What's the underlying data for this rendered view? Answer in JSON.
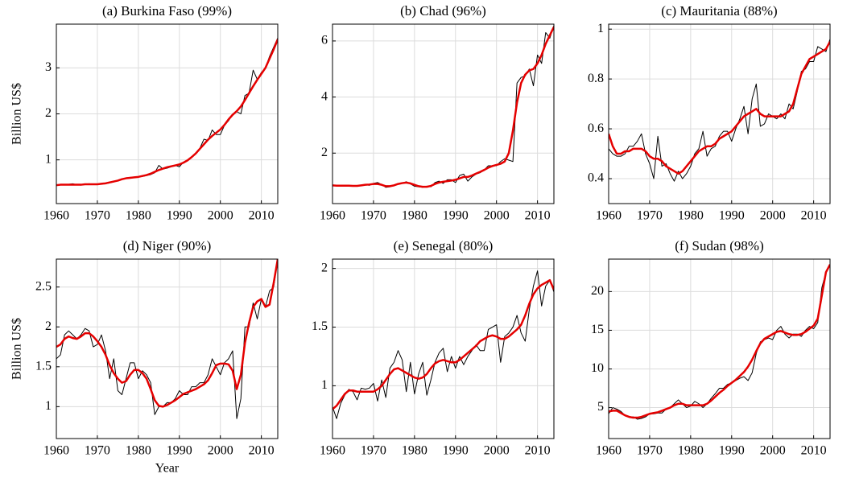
{
  "chart_data": [
    {
      "type": "line",
      "title": "(a) Burkina Faso (99%)",
      "ylabel": "Billion US$",
      "x": [
        1960,
        1961,
        1962,
        1963,
        1964,
        1965,
        1966,
        1967,
        1968,
        1969,
        1970,
        1971,
        1972,
        1973,
        1974,
        1975,
        1976,
        1977,
        1978,
        1979,
        1980,
        1981,
        1982,
        1983,
        1984,
        1985,
        1986,
        1987,
        1988,
        1989,
        1990,
        1991,
        1992,
        1993,
        1994,
        1995,
        1996,
        1997,
        1998,
        1999,
        2000,
        2001,
        2002,
        2003,
        2004,
        2005,
        2006,
        2007,
        2008,
        2009,
        2010,
        2011,
        2012,
        2013,
        2014
      ],
      "xlim": [
        1960,
        2014
      ],
      "xticks": [
        1960,
        1970,
        1980,
        1990,
        2000,
        2010
      ],
      "ylim": [
        0.05,
        3.95
      ],
      "yticks": [
        1,
        2,
        3
      ],
      "grid": true,
      "series": [
        {
          "color": "#000000",
          "values": [
            0.45,
            0.46,
            0.47,
            0.47,
            0.48,
            0.46,
            0.45,
            0.47,
            0.48,
            0.47,
            0.47,
            0.48,
            0.48,
            0.5,
            0.52,
            0.55,
            0.58,
            0.6,
            0.62,
            0.62,
            0.63,
            0.64,
            0.66,
            0.68,
            0.72,
            0.88,
            0.8,
            0.82,
            0.85,
            0.88,
            0.85,
            0.95,
            0.98,
            1.05,
            1.15,
            1.25,
            1.45,
            1.42,
            1.65,
            1.55,
            1.55,
            1.75,
            1.85,
            2.0,
            2.05,
            2.0,
            2.4,
            2.45,
            2.95,
            2.75,
            2.9,
            3.0,
            3.25,
            3.45,
            3.65
          ]
        },
        {
          "color": "#e50000",
          "values": [
            0.45,
            0.46,
            0.46,
            0.46,
            0.46,
            0.46,
            0.46,
            0.47,
            0.47,
            0.47,
            0.47,
            0.48,
            0.49,
            0.51,
            0.53,
            0.55,
            0.58,
            0.6,
            0.61,
            0.62,
            0.63,
            0.65,
            0.67,
            0.7,
            0.74,
            0.78,
            0.81,
            0.84,
            0.86,
            0.88,
            0.9,
            0.94,
            0.99,
            1.06,
            1.14,
            1.24,
            1.34,
            1.44,
            1.52,
            1.59,
            1.66,
            1.76,
            1.88,
            1.98,
            2.06,
            2.16,
            2.3,
            2.45,
            2.6,
            2.74,
            2.87,
            3.0,
            3.2,
            3.4,
            3.62
          ]
        }
      ]
    },
    {
      "type": "line",
      "title": "(b) Chad (96%)",
      "x": [
        1960,
        1961,
        1962,
        1963,
        1964,
        1965,
        1966,
        1967,
        1968,
        1969,
        1970,
        1971,
        1972,
        1973,
        1974,
        1975,
        1976,
        1977,
        1978,
        1979,
        1980,
        1981,
        1982,
        1983,
        1984,
        1985,
        1986,
        1987,
        1988,
        1989,
        1990,
        1991,
        1992,
        1993,
        1994,
        1995,
        1996,
        1997,
        1998,
        1999,
        2000,
        2001,
        2002,
        2003,
        2004,
        2005,
        2006,
        2007,
        2008,
        2009,
        2010,
        2011,
        2012,
        2013,
        2014
      ],
      "xlim": [
        1960,
        2014
      ],
      "xticks": [
        1960,
        1970,
        1980,
        1990,
        2000,
        2010
      ],
      "ylim": [
        0.2,
        6.6
      ],
      "yticks": [
        2,
        4,
        6
      ],
      "grid": true,
      "series": [
        {
          "color": "#000000",
          "values": [
            0.85,
            0.85,
            0.83,
            0.85,
            0.85,
            0.82,
            0.82,
            0.85,
            0.88,
            0.85,
            0.92,
            0.95,
            0.88,
            0.78,
            0.8,
            0.85,
            0.9,
            0.92,
            0.98,
            0.9,
            0.82,
            0.8,
            0.78,
            0.82,
            0.8,
            0.95,
            1.0,
            0.92,
            1.05,
            1.05,
            0.95,
            1.2,
            1.25,
            1.0,
            1.15,
            1.25,
            1.3,
            1.4,
            1.55,
            1.55,
            1.55,
            1.7,
            1.8,
            1.75,
            1.7,
            4.5,
            4.7,
            4.75,
            5.0,
            4.4,
            5.5,
            5.2,
            6.3,
            6.1,
            6.55
          ]
        },
        {
          "color": "#e50000",
          "values": [
            0.85,
            0.84,
            0.84,
            0.84,
            0.84,
            0.83,
            0.83,
            0.85,
            0.87,
            0.88,
            0.9,
            0.9,
            0.87,
            0.82,
            0.82,
            0.85,
            0.9,
            0.93,
            0.95,
            0.92,
            0.87,
            0.82,
            0.8,
            0.8,
            0.83,
            0.9,
            0.95,
            0.98,
            1.0,
            1.02,
            1.05,
            1.1,
            1.15,
            1.15,
            1.2,
            1.27,
            1.33,
            1.4,
            1.48,
            1.54,
            1.58,
            1.62,
            1.7,
            2.0,
            2.8,
            3.8,
            4.5,
            4.8,
            4.95,
            5.0,
            5.2,
            5.5,
            5.9,
            6.2,
            6.5
          ]
        }
      ]
    },
    {
      "type": "line",
      "title": "(c) Mauritania (88%)",
      "x": [
        1960,
        1961,
        1962,
        1963,
        1964,
        1965,
        1966,
        1967,
        1968,
        1969,
        1970,
        1971,
        1972,
        1973,
        1974,
        1975,
        1976,
        1977,
        1978,
        1979,
        1980,
        1981,
        1982,
        1983,
        1984,
        1985,
        1986,
        1987,
        1988,
        1989,
        1990,
        1991,
        1992,
        1993,
        1994,
        1995,
        1996,
        1997,
        1998,
        1999,
        2000,
        2001,
        2002,
        2003,
        2004,
        2005,
        2006,
        2007,
        2008,
        2009,
        2010,
        2011,
        2012,
        2013,
        2014
      ],
      "xlim": [
        1960,
        2014
      ],
      "xticks": [
        1960,
        1970,
        1980,
        1990,
        2000,
        2010
      ],
      "ylim": [
        0.3,
        1.02
      ],
      "yticks": [
        0.4,
        0.6,
        0.8,
        1
      ],
      "grid": true,
      "series": [
        {
          "color": "#000000",
          "values": [
            0.52,
            0.5,
            0.49,
            0.49,
            0.5,
            0.53,
            0.53,
            0.55,
            0.58,
            0.5,
            0.46,
            0.4,
            0.57,
            0.45,
            0.46,
            0.42,
            0.39,
            0.43,
            0.4,
            0.42,
            0.45,
            0.5,
            0.52,
            0.59,
            0.49,
            0.52,
            0.53,
            0.57,
            0.59,
            0.59,
            0.55,
            0.6,
            0.64,
            0.69,
            0.58,
            0.72,
            0.78,
            0.61,
            0.62,
            0.66,
            0.65,
            0.64,
            0.66,
            0.64,
            0.7,
            0.68,
            0.75,
            0.83,
            0.84,
            0.87,
            0.87,
            0.93,
            0.92,
            0.91,
            0.96
          ]
        },
        {
          "color": "#e50000",
          "values": [
            0.58,
            0.53,
            0.5,
            0.5,
            0.51,
            0.51,
            0.52,
            0.52,
            0.52,
            0.51,
            0.49,
            0.48,
            0.48,
            0.47,
            0.45,
            0.44,
            0.43,
            0.42,
            0.43,
            0.45,
            0.47,
            0.49,
            0.51,
            0.52,
            0.53,
            0.53,
            0.54,
            0.56,
            0.57,
            0.58,
            0.59,
            0.61,
            0.63,
            0.65,
            0.66,
            0.67,
            0.68,
            0.66,
            0.65,
            0.65,
            0.65,
            0.65,
            0.65,
            0.66,
            0.67,
            0.7,
            0.76,
            0.82,
            0.85,
            0.88,
            0.89,
            0.9,
            0.91,
            0.92,
            0.95
          ]
        }
      ]
    },
    {
      "type": "line",
      "title": "(d) Niger (90%)",
      "ylabel": "Billion US$",
      "xlabel": "Year",
      "x": [
        1960,
        1961,
        1962,
        1963,
        1964,
        1965,
        1966,
        1967,
        1968,
        1969,
        1970,
        1971,
        1972,
        1973,
        1974,
        1975,
        1976,
        1977,
        1978,
        1979,
        1980,
        1981,
        1982,
        1983,
        1984,
        1985,
        1986,
        1987,
        1988,
        1989,
        1990,
        1991,
        1992,
        1993,
        1994,
        1995,
        1996,
        1997,
        1998,
        1999,
        2000,
        2001,
        2002,
        2003,
        2004,
        2005,
        2006,
        2007,
        2008,
        2009,
        2010,
        2011,
        2012,
        2013,
        2014
      ],
      "xlim": [
        1960,
        2014
      ],
      "xticks": [
        1960,
        1970,
        1980,
        1990,
        2000,
        2010
      ],
      "ylim": [
        0.6,
        2.85
      ],
      "yticks": [
        1,
        1.5,
        2,
        2.5
      ],
      "grid": true,
      "series": [
        {
          "color": "#000000",
          "values": [
            1.6,
            1.65,
            1.9,
            1.95,
            1.9,
            1.85,
            1.9,
            1.98,
            1.95,
            1.75,
            1.78,
            1.9,
            1.7,
            1.35,
            1.6,
            1.2,
            1.15,
            1.35,
            1.55,
            1.55,
            1.35,
            1.45,
            1.4,
            1.3,
            0.9,
            1.0,
            1.0,
            1.05,
            1.05,
            1.1,
            1.2,
            1.15,
            1.15,
            1.25,
            1.25,
            1.3,
            1.3,
            1.4,
            1.6,
            1.5,
            1.4,
            1.55,
            1.6,
            1.7,
            0.85,
            1.1,
            2.0,
            2.0,
            2.3,
            2.1,
            2.35,
            2.25,
            2.45,
            2.5,
            2.85
          ]
        },
        {
          "color": "#e50000",
          "values": [
            1.75,
            1.78,
            1.85,
            1.88,
            1.86,
            1.85,
            1.88,
            1.92,
            1.92,
            1.88,
            1.82,
            1.75,
            1.65,
            1.52,
            1.42,
            1.35,
            1.3,
            1.32,
            1.4,
            1.46,
            1.46,
            1.42,
            1.35,
            1.22,
            1.08,
            1.01,
            1.0,
            1.02,
            1.05,
            1.08,
            1.12,
            1.16,
            1.18,
            1.2,
            1.22,
            1.25,
            1.28,
            1.33,
            1.42,
            1.52,
            1.54,
            1.54,
            1.53,
            1.45,
            1.22,
            1.4,
            1.8,
            2.05,
            2.25,
            2.32,
            2.35,
            2.25,
            2.28,
            2.55,
            2.85
          ]
        }
      ]
    },
    {
      "type": "line",
      "title": "(e) Senegal (80%)",
      "x": [
        1960,
        1961,
        1962,
        1963,
        1964,
        1965,
        1966,
        1967,
        1968,
        1969,
        1970,
        1971,
        1972,
        1973,
        1974,
        1975,
        1976,
        1977,
        1978,
        1979,
        1980,
        1981,
        1982,
        1983,
        1984,
        1985,
        1986,
        1987,
        1988,
        1989,
        1990,
        1991,
        1992,
        1993,
        1994,
        1995,
        1996,
        1997,
        1998,
        1999,
        2000,
        2001,
        2002,
        2003,
        2004,
        2005,
        2006,
        2007,
        2008,
        2009,
        2010,
        2011,
        2012,
        2013,
        2014
      ],
      "xlim": [
        1960,
        2014
      ],
      "xticks": [
        1960,
        1970,
        1980,
        1990,
        2000,
        2010
      ],
      "ylim": [
        0.55,
        2.08
      ],
      "yticks": [
        1,
        1.5,
        2
      ],
      "grid": true,
      "series": [
        {
          "color": "#000000",
          "values": [
            0.82,
            0.72,
            0.85,
            0.92,
            0.97,
            0.95,
            0.88,
            0.98,
            0.97,
            0.98,
            1.02,
            0.87,
            1.05,
            0.9,
            1.15,
            1.2,
            1.3,
            1.22,
            0.95,
            1.2,
            0.93,
            1.1,
            1.2,
            0.92,
            1.05,
            1.2,
            1.28,
            1.32,
            1.12,
            1.25,
            1.15,
            1.25,
            1.18,
            1.25,
            1.3,
            1.35,
            1.3,
            1.3,
            1.48,
            1.5,
            1.52,
            1.2,
            1.42,
            1.45,
            1.5,
            1.6,
            1.45,
            1.38,
            1.65,
            1.85,
            1.98,
            1.68,
            1.85,
            1.9,
            1.8
          ]
        },
        {
          "color": "#e50000",
          "values": [
            0.8,
            0.83,
            0.88,
            0.93,
            0.96,
            0.96,
            0.95,
            0.95,
            0.95,
            0.95,
            0.95,
            0.97,
            1.0,
            1.05,
            1.1,
            1.14,
            1.15,
            1.13,
            1.11,
            1.09,
            1.07,
            1.06,
            1.07,
            1.1,
            1.15,
            1.19,
            1.21,
            1.22,
            1.21,
            1.2,
            1.2,
            1.22,
            1.25,
            1.28,
            1.31,
            1.34,
            1.38,
            1.4,
            1.42,
            1.43,
            1.42,
            1.4,
            1.4,
            1.42,
            1.45,
            1.48,
            1.52,
            1.6,
            1.7,
            1.78,
            1.83,
            1.86,
            1.88,
            1.9,
            1.82
          ]
        }
      ]
    },
    {
      "type": "line",
      "title": "(f) Sudan (98%)",
      "x": [
        1960,
        1961,
        1962,
        1963,
        1964,
        1965,
        1966,
        1967,
        1968,
        1969,
        1970,
        1971,
        1972,
        1973,
        1974,
        1975,
        1976,
        1977,
        1978,
        1979,
        1980,
        1981,
        1982,
        1983,
        1984,
        1985,
        1986,
        1987,
        1988,
        1989,
        1990,
        1991,
        1992,
        1993,
        1994,
        1995,
        1996,
        1997,
        1998,
        1999,
        2000,
        2001,
        2002,
        2003,
        2004,
        2005,
        2006,
        2007,
        2008,
        2009,
        2010,
        2011,
        2012,
        2013,
        2014
      ],
      "xlim": [
        1960,
        2014
      ],
      "xticks": [
        1960,
        1970,
        1980,
        1990,
        2000,
        2010
      ],
      "ylim": [
        1,
        24.2
      ],
      "yticks": [
        5,
        10,
        15,
        20
      ],
      "grid": true,
      "series": [
        {
          "color": "#000000",
          "values": [
            4.2,
            5.0,
            4.8,
            4.5,
            4.0,
            3.8,
            3.8,
            3.5,
            3.6,
            3.8,
            4.2,
            4.2,
            4.3,
            4.3,
            4.8,
            5.0,
            5.5,
            6.0,
            5.5,
            5.0,
            5.2,
            5.8,
            5.5,
            5.0,
            5.5,
            6.2,
            6.8,
            7.5,
            7.5,
            8.0,
            8.2,
            8.5,
            8.8,
            9.0,
            8.5,
            9.5,
            12.0,
            13.5,
            13.8,
            14.0,
            13.8,
            15.0,
            15.5,
            14.5,
            14.0,
            14.5,
            14.5,
            14.2,
            15.0,
            15.5,
            15.2,
            16.0,
            20.5,
            22.5,
            23.5
          ]
        },
        {
          "color": "#e50000",
          "values": [
            4.5,
            4.6,
            4.6,
            4.3,
            4.0,
            3.8,
            3.7,
            3.7,
            3.8,
            4.0,
            4.2,
            4.3,
            4.4,
            4.6,
            4.8,
            5.0,
            5.3,
            5.5,
            5.5,
            5.3,
            5.3,
            5.3,
            5.3,
            5.3,
            5.5,
            5.9,
            6.4,
            6.9,
            7.3,
            7.8,
            8.2,
            8.6,
            9.1,
            9.6,
            10.3,
            11.2,
            12.3,
            13.3,
            13.9,
            14.2,
            14.5,
            14.8,
            14.9,
            14.7,
            14.5,
            14.4,
            14.4,
            14.5,
            14.8,
            15.2,
            15.6,
            16.5,
            19.5,
            22.5,
            23.5
          ]
        }
      ]
    }
  ]
}
